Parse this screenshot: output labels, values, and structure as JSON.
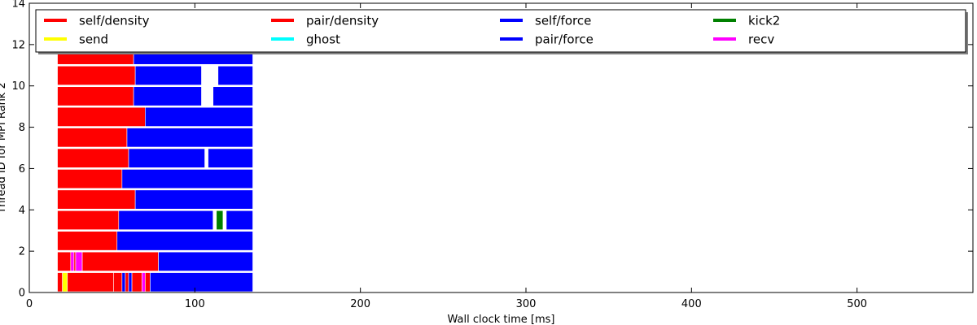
{
  "chart_data": {
    "type": "bar",
    "orientation": "horizontal-gantt",
    "xlabel": "Wall clock time [ms]",
    "ylabel": "Thread ID for MPI Rank 2",
    "xlim": [
      0,
      570
    ],
    "ylim": [
      0,
      14
    ],
    "xticks": [
      0,
      100,
      200,
      300,
      400,
      500
    ],
    "yticks": [
      0,
      2,
      4,
      6,
      8,
      10,
      12,
      14
    ],
    "grid": false,
    "legend_position": "top",
    "series": [
      {
        "name": "self/density",
        "color": "#ff0000"
      },
      {
        "name": "send",
        "color": "#ffff00"
      },
      {
        "name": "pair/density",
        "color": "#ff0000"
      },
      {
        "name": "ghost",
        "color": "#00ffff"
      },
      {
        "name": "self/force",
        "color": "#0000ff"
      },
      {
        "name": "pair/force",
        "color": "#0000ff"
      },
      {
        "name": "kick2",
        "color": "#008000"
      },
      {
        "name": "recv",
        "color": "#ff00ff"
      }
    ],
    "threads": [
      {
        "id": 0,
        "tasks": [
          {
            "start": 17,
            "end": 20,
            "type": "pair/density"
          },
          {
            "start": 20,
            "end": 23,
            "type": "send"
          },
          {
            "start": 23,
            "end": 51,
            "type": "pair/density"
          },
          {
            "start": 51,
            "end": 56,
            "type": "pair/density"
          },
          {
            "start": 56,
            "end": 58,
            "type": "pair/force"
          },
          {
            "start": 58,
            "end": 60,
            "type": "pair/density"
          },
          {
            "start": 60,
            "end": 62,
            "type": "pair/force"
          },
          {
            "start": 62,
            "end": 68,
            "type": "pair/density"
          },
          {
            "start": 68,
            "end": 70,
            "type": "recv"
          },
          {
            "start": 70,
            "end": 73,
            "type": "pair/density"
          },
          {
            "start": 73,
            "end": 135,
            "type": "pair/force"
          }
        ]
      },
      {
        "id": 1,
        "tasks": [
          {
            "start": 17,
            "end": 25,
            "type": "pair/density"
          },
          {
            "start": 25,
            "end": 27,
            "type": "recv"
          },
          {
            "start": 27,
            "end": 28,
            "type": "pair/density"
          },
          {
            "start": 28,
            "end": 32,
            "type": "recv"
          },
          {
            "start": 32,
            "end": 78,
            "type": "pair/density"
          },
          {
            "start": 78,
            "end": 135,
            "type": "pair/force"
          }
        ]
      },
      {
        "id": 2,
        "tasks": [
          {
            "start": 17,
            "end": 53,
            "type": "pair/density"
          },
          {
            "start": 53,
            "end": 135,
            "type": "pair/force"
          }
        ]
      },
      {
        "id": 3,
        "tasks": [
          {
            "start": 17,
            "end": 54,
            "type": "pair/density"
          },
          {
            "start": 54,
            "end": 111,
            "type": "pair/force"
          },
          {
            "start": 113,
            "end": 117,
            "type": "kick2"
          },
          {
            "start": 119,
            "end": 135,
            "type": "pair/force"
          }
        ]
      },
      {
        "id": 4,
        "tasks": [
          {
            "start": 17,
            "end": 64,
            "type": "pair/density"
          },
          {
            "start": 64,
            "end": 135,
            "type": "pair/force"
          }
        ]
      },
      {
        "id": 5,
        "tasks": [
          {
            "start": 17,
            "end": 56,
            "type": "pair/density"
          },
          {
            "start": 56,
            "end": 135,
            "type": "pair/force"
          }
        ]
      },
      {
        "id": 6,
        "tasks": [
          {
            "start": 17,
            "end": 60,
            "type": "pair/density"
          },
          {
            "start": 60,
            "end": 106,
            "type": "pair/force"
          },
          {
            "start": 108,
            "end": 135,
            "type": "pair/force"
          }
        ]
      },
      {
        "id": 7,
        "tasks": [
          {
            "start": 17,
            "end": 59,
            "type": "pair/density"
          },
          {
            "start": 59,
            "end": 135,
            "type": "pair/force"
          }
        ]
      },
      {
        "id": 8,
        "tasks": [
          {
            "start": 17,
            "end": 70,
            "type": "pair/density"
          },
          {
            "start": 70,
            "end": 135,
            "type": "pair/force"
          }
        ]
      },
      {
        "id": 9,
        "tasks": [
          {
            "start": 17,
            "end": 63,
            "type": "pair/density"
          },
          {
            "start": 63,
            "end": 104,
            "type": "pair/force"
          },
          {
            "start": 111,
            "end": 135,
            "type": "pair/force"
          }
        ]
      },
      {
        "id": 10,
        "tasks": [
          {
            "start": 17,
            "end": 64,
            "type": "pair/density"
          },
          {
            "start": 64,
            "end": 104,
            "type": "pair/force"
          },
          {
            "start": 114,
            "end": 135,
            "type": "pair/force"
          }
        ]
      },
      {
        "id": 11,
        "tasks": [
          {
            "start": 17,
            "end": 63,
            "type": "pair/density"
          },
          {
            "start": 63,
            "end": 135,
            "type": "pair/force"
          }
        ]
      }
    ]
  }
}
